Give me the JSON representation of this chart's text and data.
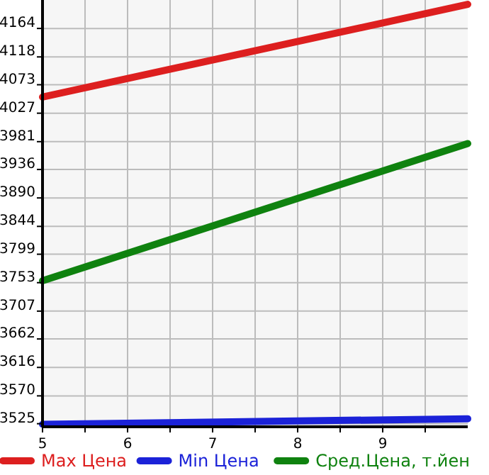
{
  "chart_data": {
    "type": "line",
    "x": [
      5,
      10
    ],
    "xlim": [
      5,
      10
    ],
    "xticks": [
      5,
      {
        "value": 5.5,
        "label": null
      },
      6,
      {
        "value": 6.5,
        "label": null
      },
      7,
      {
        "value": 7.5,
        "label": null
      },
      8,
      {
        "value": 8.5,
        "label": null
      },
      9,
      {
        "value": 9.5,
        "label": null
      }
    ],
    "ylim": [
      3520,
      4210
    ],
    "yticks": [
      3525,
      3570,
      3616,
      3662,
      3707,
      3753,
      3799,
      3844,
      3890,
      3936,
      3981,
      4027,
      4073,
      4118,
      4164
    ],
    "grid": true,
    "legend": "bottom",
    "marker": "none",
    "line_style": "solid",
    "series": [
      {
        "name": "Max Цена",
        "color": "#dd1f1f",
        "values": [
          4053,
          4203
        ]
      },
      {
        "name": "Min Цена",
        "color": "#1b22d8",
        "values": [
          3524,
          3533
        ]
      },
      {
        "name": "Сред.Цена, т.йен",
        "color": "#0f820f",
        "values": [
          3756,
          3978
        ]
      }
    ]
  }
}
